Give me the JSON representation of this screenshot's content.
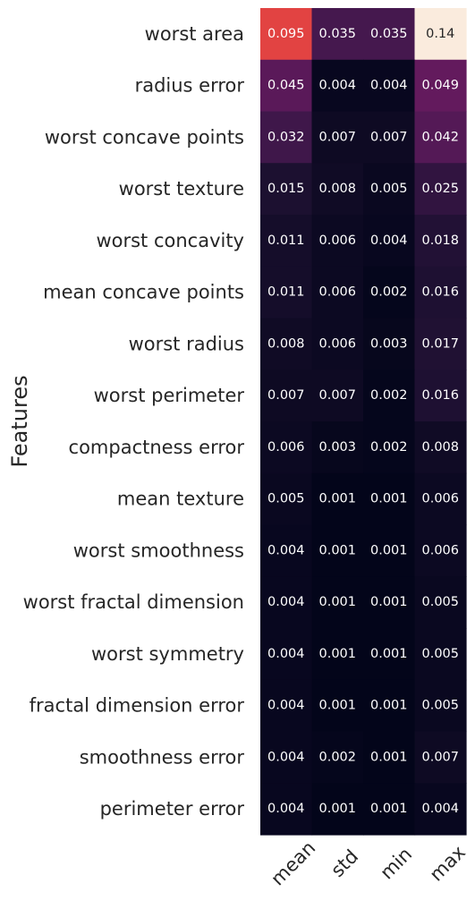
{
  "chart_data": {
    "type": "heatmap",
    "title": "",
    "xlabel": "",
    "ylabel": "Features",
    "columns": [
      "mean",
      "std",
      "min",
      "max"
    ],
    "rows": [
      "worst area",
      "radius error",
      "worst concave points",
      "worst texture",
      "worst concavity",
      "mean concave points",
      "worst radius",
      "worst perimeter",
      "compactness error",
      "mean texture",
      "worst smoothness",
      "worst fractal dimension",
      "worst symmetry",
      "fractal dimension error",
      "smoothness error",
      "perimeter error"
    ],
    "values": [
      [
        0.095,
        0.035,
        0.035,
        0.14
      ],
      [
        0.045,
        0.004,
        0.004,
        0.049
      ],
      [
        0.032,
        0.007,
        0.007,
        0.042
      ],
      [
        0.015,
        0.008,
        0.005,
        0.025
      ],
      [
        0.011,
        0.006,
        0.004,
        0.018
      ],
      [
        0.011,
        0.006,
        0.002,
        0.016
      ],
      [
        0.008,
        0.006,
        0.003,
        0.017
      ],
      [
        0.007,
        0.007,
        0.002,
        0.016
      ],
      [
        0.006,
        0.003,
        0.002,
        0.008
      ],
      [
        0.005,
        0.001,
        0.001,
        0.006
      ],
      [
        0.004,
        0.001,
        0.001,
        0.006
      ],
      [
        0.004,
        0.001,
        0.001,
        0.005
      ],
      [
        0.004,
        0.001,
        0.001,
        0.005
      ],
      [
        0.004,
        0.001,
        0.001,
        0.005
      ],
      [
        0.004,
        0.002,
        0.001,
        0.007
      ],
      [
        0.004,
        0.001,
        0.001,
        0.004
      ]
    ],
    "value_labels": [
      [
        "0.095",
        "0.035",
        "0.035",
        "0.14"
      ],
      [
        "0.045",
        "0.004",
        "0.004",
        "0.049"
      ],
      [
        "0.032",
        "0.007",
        "0.007",
        "0.042"
      ],
      [
        "0.015",
        "0.008",
        "0.005",
        "0.025"
      ],
      [
        "0.011",
        "0.006",
        "0.004",
        "0.018"
      ],
      [
        "0.011",
        "0.006",
        "0.002",
        "0.016"
      ],
      [
        "0.008",
        "0.006",
        "0.003",
        "0.017"
      ],
      [
        "0.007",
        "0.007",
        "0.002",
        "0.016"
      ],
      [
        "0.006",
        "0.003",
        "0.002",
        "0.008"
      ],
      [
        "0.005",
        "0.001",
        "0.001",
        "0.006"
      ],
      [
        "0.004",
        "0.001",
        "0.001",
        "0.006"
      ],
      [
        "0.004",
        "0.001",
        "0.001",
        "0.005"
      ],
      [
        "0.004",
        "0.001",
        "0.001",
        "0.005"
      ],
      [
        "0.004",
        "0.001",
        "0.001",
        "0.005"
      ],
      [
        "0.004",
        "0.002",
        "0.001",
        "0.007"
      ],
      [
        "0.004",
        "0.001",
        "0.001",
        "0.004"
      ]
    ],
    "colormap": "rocket",
    "value_range": [
      0.001,
      0.14
    ],
    "grid": false,
    "colorbar": false
  }
}
